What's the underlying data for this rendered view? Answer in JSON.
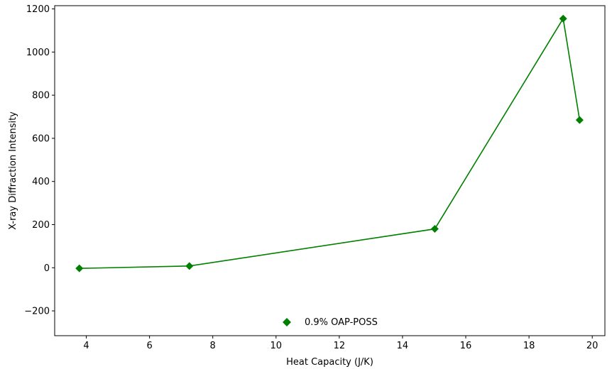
{
  "chart_data": {
    "type": "line",
    "title": "",
    "xlabel": "Heat Capacity (J/K)",
    "ylabel": "X-ray Diffraction Intensity",
    "xlim": [
      3.0,
      20.4
    ],
    "ylim": [
      -315,
      1215
    ],
    "xticks": [
      4,
      6,
      8,
      10,
      12,
      14,
      16,
      18,
      20
    ],
    "yticks": [
      -200,
      0,
      200,
      400,
      600,
      800,
      1000,
      1200
    ],
    "ytick_labels": [
      "−200",
      "0",
      "200",
      "400",
      "600",
      "800",
      "1000",
      "1200"
    ],
    "grid": false,
    "legend_position": "bottom-center",
    "series": [
      {
        "name": "0.9% OAP-POSS",
        "color": "#008000",
        "marker": "diamond",
        "x": [
          3.78,
          7.26,
          15.02,
          19.08,
          19.6
        ],
        "y": [
          -3,
          8,
          180,
          1155,
          685
        ]
      }
    ]
  }
}
